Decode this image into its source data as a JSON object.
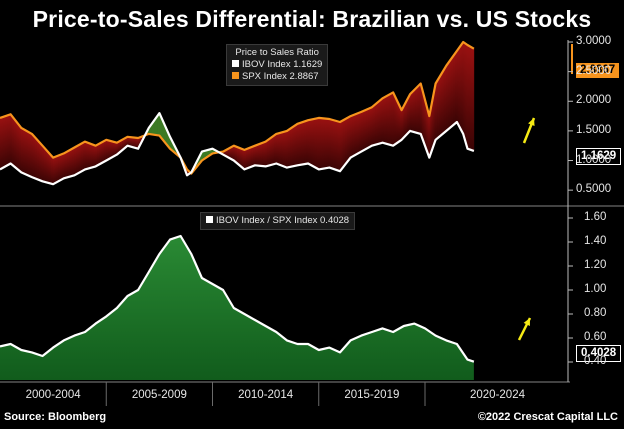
{
  "title": "Price-to-Sales Differential: Brazilian vs. US Stocks",
  "legend_top": {
    "title": "Price to Sales Ratio",
    "items": [
      {
        "label": "IBOV Index 1.1629",
        "color": "#ffffff"
      },
      {
        "label": "SPX Index  2.8867",
        "color": "#f7941d"
      }
    ]
  },
  "legend_bottom": {
    "label": "IBOV Index / SPX Index 0.4028",
    "color": "#ffffff"
  },
  "tags": {
    "spx": "2.8867",
    "ibov": "1.1629",
    "ratio": "0.4028"
  },
  "x_labels": [
    "2000-2004",
    "2005-2009",
    "2010-2014",
    "2015-2019",
    "2020-2024"
  ],
  "footer": {
    "source": "Source: Bloomberg",
    "credit": "©2022 Crescat Capital LLC"
  },
  "chart_data": [
    {
      "type": "area",
      "title": "Price to Sales Ratio",
      "ylim": [
        0.3,
        3.0
      ],
      "yticks": [
        "0.5000",
        "1.0000",
        "1.5000",
        "2.0000",
        "2.5000",
        "3.0000"
      ],
      "ytick_values": [
        0.5,
        1.0,
        1.5,
        2.0,
        2.5,
        3.0
      ],
      "xlim": [
        2000,
        2024
      ],
      "fill_colors": {
        "spx_above": "#7a0d0d",
        "ibov_above": "#2f6a1e"
      },
      "series": [
        {
          "name": "SPX Index",
          "color": "#f7941d",
          "x": [
            2000,
            2000.5,
            2001,
            2001.5,
            2002,
            2002.5,
            2003,
            2003.5,
            2004,
            2004.5,
            2005,
            2005.5,
            2006,
            2006.5,
            2007,
            2007.5,
            2008,
            2008.5,
            2008.8,
            2009,
            2009.5,
            2010,
            2010.5,
            2011,
            2011.5,
            2012,
            2012.5,
            2013,
            2013.5,
            2014,
            2014.5,
            2015,
            2015.5,
            2016,
            2016.5,
            2017,
            2017.5,
            2018,
            2018.5,
            2018.9,
            2019.3,
            2019.8,
            2020.2,
            2020.5,
            2021,
            2021.5,
            2021.8,
            2022,
            2022.3
          ],
          "values": [
            1.72,
            1.78,
            1.55,
            1.45,
            1.25,
            1.05,
            1.12,
            1.22,
            1.32,
            1.25,
            1.35,
            1.3,
            1.4,
            1.38,
            1.45,
            1.42,
            1.2,
            1.05,
            0.85,
            0.78,
            1.0,
            1.12,
            1.15,
            1.25,
            1.18,
            1.25,
            1.32,
            1.45,
            1.5,
            1.62,
            1.68,
            1.72,
            1.7,
            1.65,
            1.75,
            1.82,
            1.9,
            2.05,
            2.15,
            1.85,
            2.12,
            2.3,
            1.75,
            2.3,
            2.6,
            2.85,
            3.0,
            2.95,
            2.8867
          ]
        },
        {
          "name": "IBOV Index",
          "color": "#ffffff",
          "x": [
            2000,
            2000.5,
            2001,
            2001.5,
            2002,
            2002.5,
            2003,
            2003.5,
            2004,
            2004.5,
            2005,
            2005.5,
            2006,
            2006.5,
            2007,
            2007.5,
            2008,
            2008.5,
            2008.8,
            2009,
            2009.5,
            2010,
            2010.5,
            2011,
            2011.5,
            2012,
            2012.5,
            2013,
            2013.5,
            2014,
            2014.5,
            2015,
            2015.5,
            2016,
            2016.5,
            2017,
            2017.5,
            2018,
            2018.5,
            2018.9,
            2019.3,
            2019.8,
            2020.2,
            2020.5,
            2021,
            2021.5,
            2021.8,
            2022,
            2022.3
          ],
          "values": [
            0.85,
            0.95,
            0.8,
            0.72,
            0.65,
            0.6,
            0.7,
            0.75,
            0.85,
            0.9,
            1.0,
            1.1,
            1.25,
            1.2,
            1.55,
            1.8,
            1.4,
            1.05,
            0.75,
            0.8,
            1.15,
            1.2,
            1.1,
            1.0,
            0.85,
            0.92,
            0.9,
            0.95,
            0.88,
            0.92,
            0.95,
            0.85,
            0.88,
            0.82,
            1.05,
            1.15,
            1.25,
            1.3,
            1.25,
            1.35,
            1.5,
            1.45,
            1.05,
            1.35,
            1.5,
            1.65,
            1.45,
            1.2,
            1.1629
          ]
        }
      ]
    },
    {
      "type": "area",
      "title": "IBOV Index / SPX Index",
      "ylim": [
        0.25,
        1.65
      ],
      "yticks": [
        "0.40",
        "0.60",
        "0.80",
        "1.00",
        "1.20",
        "1.40",
        "1.60"
      ],
      "ytick_values": [
        0.4,
        0.6,
        0.8,
        1.0,
        1.2,
        1.4,
        1.6
      ],
      "xlim": [
        2000,
        2024
      ],
      "series": [
        {
          "name": "IBOV Index / SPX Index",
          "color": "#ffffff",
          "fill": "#1d7a2a",
          "x": [
            2000,
            2000.5,
            2001,
            2001.5,
            2002,
            2002.5,
            2003,
            2003.5,
            2004,
            2004.5,
            2005,
            2005.5,
            2006,
            2006.5,
            2007,
            2007.5,
            2008,
            2008.5,
            2009,
            2009.5,
            2010,
            2010.5,
            2011,
            2011.5,
            2012,
            2012.5,
            2013,
            2013.5,
            2014,
            2014.5,
            2015,
            2015.5,
            2016,
            2016.5,
            2017,
            2017.5,
            2018,
            2018.5,
            2019,
            2019.5,
            2020,
            2020.5,
            2021,
            2021.5,
            2022,
            2022.3
          ],
          "values": [
            0.53,
            0.55,
            0.5,
            0.48,
            0.45,
            0.52,
            0.58,
            0.62,
            0.65,
            0.72,
            0.78,
            0.85,
            0.95,
            1.0,
            1.15,
            1.3,
            1.42,
            1.45,
            1.3,
            1.1,
            1.05,
            1.0,
            0.85,
            0.8,
            0.75,
            0.7,
            0.65,
            0.58,
            0.55,
            0.55,
            0.5,
            0.52,
            0.48,
            0.58,
            0.62,
            0.65,
            0.68,
            0.65,
            0.7,
            0.72,
            0.68,
            0.62,
            0.58,
            0.55,
            0.42,
            0.4028
          ]
        }
      ]
    }
  ]
}
